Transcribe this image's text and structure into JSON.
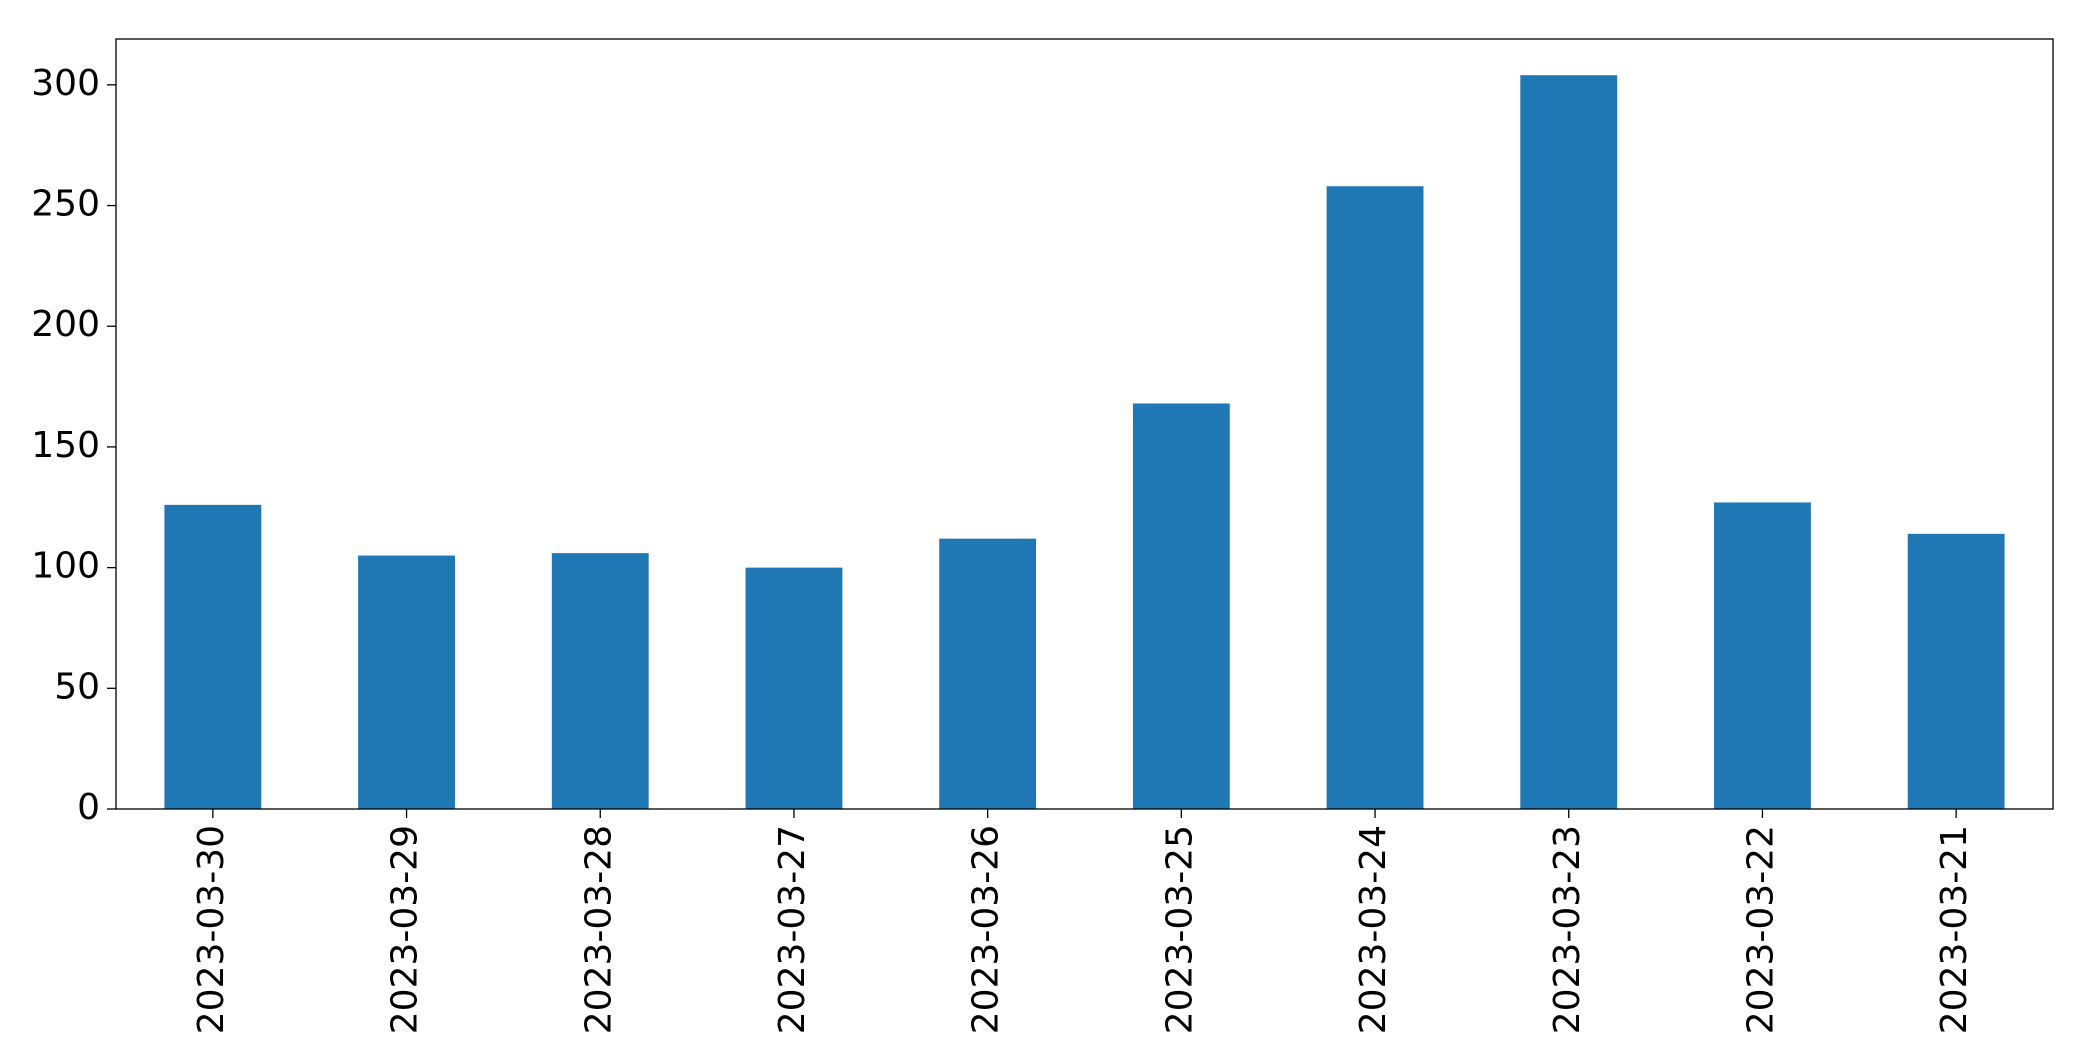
{
  "chart_data": {
    "type": "bar",
    "categories": [
      "2023-03-30",
      "2023-03-29",
      "2023-03-28",
      "2023-03-27",
      "2023-03-26",
      "2023-03-25",
      "2023-03-24",
      "2023-03-23",
      "2023-03-22",
      "2023-03-21"
    ],
    "values": [
      126,
      105,
      106,
      100,
      112,
      168,
      258,
      304,
      127,
      114
    ],
    "color": "#1f77b4",
    "ylim": [
      0,
      319
    ],
    "yticks": [
      0,
      50,
      100,
      150,
      200,
      250,
      300
    ],
    "grid": false
  }
}
